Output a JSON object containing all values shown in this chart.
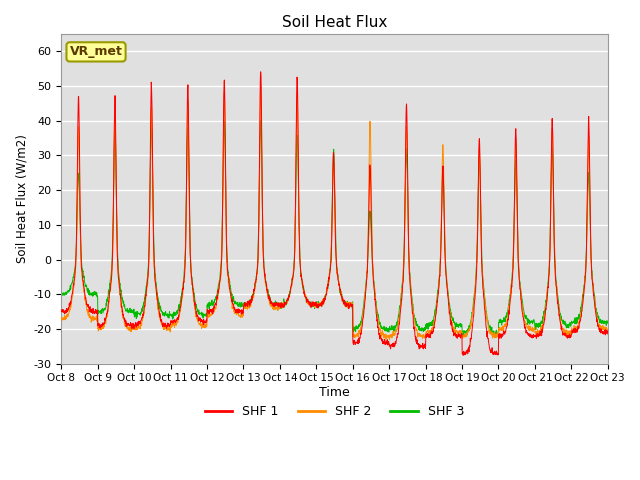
{
  "title": "Soil Heat Flux",
  "ylabel": "Soil Heat Flux (W/m2)",
  "xlabel": "Time",
  "ylim": [
    -30,
    65
  ],
  "yticks": [
    -30,
    -20,
    -10,
    0,
    10,
    20,
    30,
    40,
    50,
    60
  ],
  "xlabels": [
    "Oct 8",
    "Oct 9",
    "Oct 10",
    "Oct 11",
    "Oct 12",
    "Oct 13",
    "Oct 14",
    "Oct 15",
    "Oct 16",
    "Oct 17",
    "Oct 18",
    "Oct 19",
    "Oct 20",
    "Oct 21",
    "Oct 22",
    "Oct 23"
  ],
  "colors": {
    "SHF 1": "#ff0000",
    "SHF 2": "#ff8c00",
    "SHF 3": "#00bb00"
  },
  "bg_color": "#e0e0e0",
  "annotation_text": "VR_met",
  "annotation_bg": "#ffff99",
  "annotation_border": "#999900",
  "legend_entries": [
    "SHF 1",
    "SHF 2",
    "SHF 3"
  ]
}
